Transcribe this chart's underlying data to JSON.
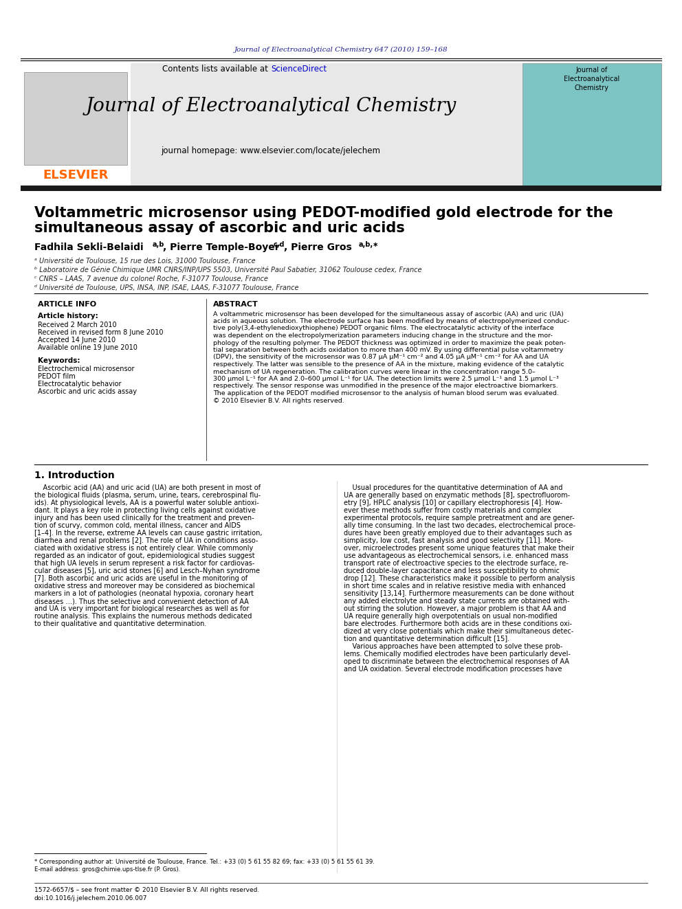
{
  "bg_color": "#ffffff",
  "header_journal_ref": "Journal of Electroanalytical Chemistry 647 (2010) 159–168",
  "header_ref_color": "#1a1a8c",
  "journal_title": "Journal of Electroanalytical Chemistry",
  "journal_homepage": "journal homepage: www.elsevier.com/locate/jelechem",
  "contents_line": "Contents lists available at ScienceDirect",
  "sciencedirect_color": "#0000cc",
  "elsevier_color": "#ff6600",
  "elsevier_text": "ELSEVIER",
  "header_bg": "#e8e8e8",
  "dark_bar_color": "#1a1a1a",
  "article_title": "Voltammetric microsensor using PEDOT-modified gold electrode for the\nsimultaneous assay of ascorbic and uric acids",
  "authors": "Fadhila Sekli-Belaidi",
  "authors_superscript": "a,b",
  "author2": ", Pierre Temple-Boyer",
  "author2_superscript": "c,d",
  "author3": ", Pierre Gros",
  "author3_superscript": "a,b,∗",
  "affil_a": "ᵃ Université de Toulouse, 15 rue des Lois, 31000 Toulouse, France",
  "affil_b": "ᵇ Laboratoire de Génie Chimique UMR CNRS/INP/UPS 5503, Université Paul Sabatier, 31062 Toulouse cedex, France",
  "affil_c": "ᶜ CNRS – LAAS, 7 avenue du colonel Roche, F-31077 Toulouse, France",
  "affil_d": "ᵈ Université de Toulouse, UPS, INSA, INP, ISAE, LAAS, F-31077 Toulouse, France",
  "article_info_title": "ARTICLE INFO",
  "article_history_title": "Article history:",
  "received1": "Received 2 March 2010",
  "received2": "Received in revised form 8 June 2010",
  "accepted": "Accepted 14 June 2010",
  "online": "Available online 19 June 2010",
  "keywords_title": "Keywords:",
  "keyword1": "Electrochemical microsensor",
  "keyword2": "PEDOT film",
  "keyword3": "Electrocatalytic behavior",
  "keyword4": "Ascorbic and uric acids assay",
  "abstract_title": "ABSTRACT",
  "abstract_text": "A voltammetric microsensor has been developed for the simultaneous assay of ascorbic (AA) and uric (UA) acids in aqueous solution. The electrode surface has been modified by means of electropolymerized conductive poly(3,4-ethylenedioxythiophene) PEDOT organic films. The electrocatalytic activity of the interface was dependent on the electropolymerization parameters inducing change in the structure and the morphology of the resulting polymer. The PEDOT thickness was optimized in order to maximize the peak potential separation between both acids oxidation to more than 400 mV. By using differential pulse voltammetry (DPV), the sensitivity of the microsensor was 0.87 μA μM⁻¹ cm⁻² and 4.05 μA μM⁻¹ cm⁻² for AA and UA respectively. The latter was sensible to the presence of AA in the mixture, making evidence of the catalytic mechanism of UA regeneration. The calibration curves were linear in the concentration range 5.0–300 μmol L⁻¹ for AA and 2.0–600 μmol L⁻¹ for UA. The detection limits were 2.5 μmol L⁻¹ and 1.5 μmol L⁻³ respectively. The sensor response was unmodified in the presence of the major electroactive biomarkers. The application of the PEDOT modified microsensor to the analysis of human blood serum was evaluated.\n© 2010 Elsevier B.V. All rights reserved.",
  "section1_title": "1. Introduction",
  "intro_text_left": "Ascorbic acid (AA) and uric acid (UA) are both present in most of the biological fluids (plasma, serum, urine, tears, cerebrospinal fluids). At physiological levels, AA is a powerful water soluble antioxidant. It plays a key role in protecting living cells against oxidative injury and has been used clinically for the treatment and prevention of scurvy, common cold, mental illness, cancer and AIDS [1–4]. In the reverse, extreme AA levels can cause gastric irritation, diarrhea and renal problems [2]. The role of UA in conditions associated with oxidative stress is not entirely clear. While commonly regarded as an indicator of gout, epidemiological studies suggest that high UA levels in serum represent a risk factor for cardiovascular diseases [5], uric acid stones [6] and Lesch–Nyhan syndrome [7]. Both ascorbic and uric acids are useful in the monitoring of oxidative stress and moreover may be considered as biochemical markers in a lot of pathologies (neonatal hypoxia, coronary heart diseases …). Thus the selective and convenient detection of AA and UA is very important for biological researches as well as for routine analysis. This explains the numerous methods dedicated to their qualitative and quantitative determination.",
  "intro_text_right": "Usual procedures for the quantitative determination of AA and UA are generally based on enzymatic methods [8], spectrofluorometry [9], HPLC analysis [10] or capillary electrophoresis [4]. However these methods suffer from costly materials and complex experimental protocols, require sample pretreatment and are generally time consuming. In the last two decades, electrochemical procedures have been greatly employed due to their advantages such as simplicity, low cost, fast analysis and good selectivity [11]. Moreover, microelectrodes present some unique features that make their use advantageous as electrochemical sensors, i.e. enhanced mass transport rate of electroactive species to the electrode surface, reduced double-layer capacitance and less susceptibility to ohmic drop [12]. These characteristics make it possible to perform analysis in short time scales and in relative resistive media with enhanced sensitivity [13,14]. Furthermore measurements can be done without any added electrolyte and steady state currents are obtained without stirring the solution. However, a major problem is that AA and UA require generally high overpotentials on usual non-modified bare electrodes. Furthermore both acids are in these conditions oxidized at very close potentials which make their simultaneous detection and quantitative determination difficult [15].",
  "footnote_star": "* Corresponding author at: Université de Toulouse, France. Tel.: +33 (0) 5 61 55 82 69; fax: +33 (0) 5 61 55 61 39.",
  "footnote_email": "E-mail address: gros@chimie.ups-tlse.fr (P. Gros).",
  "footer_issn": "1572-6657/$ – see front matter © 2010 Elsevier B.V. All rights reserved.",
  "footer_doi": "doi:10.1016/j.jelechem.2010.06.007",
  "intro_text_right2": "Various approaches have been attempted to solve these problems. Chemically modified electrodes have been particularly developed to discriminate between the electrochemical responses of AA and UA oxidation. Several electrode modification processes have"
}
